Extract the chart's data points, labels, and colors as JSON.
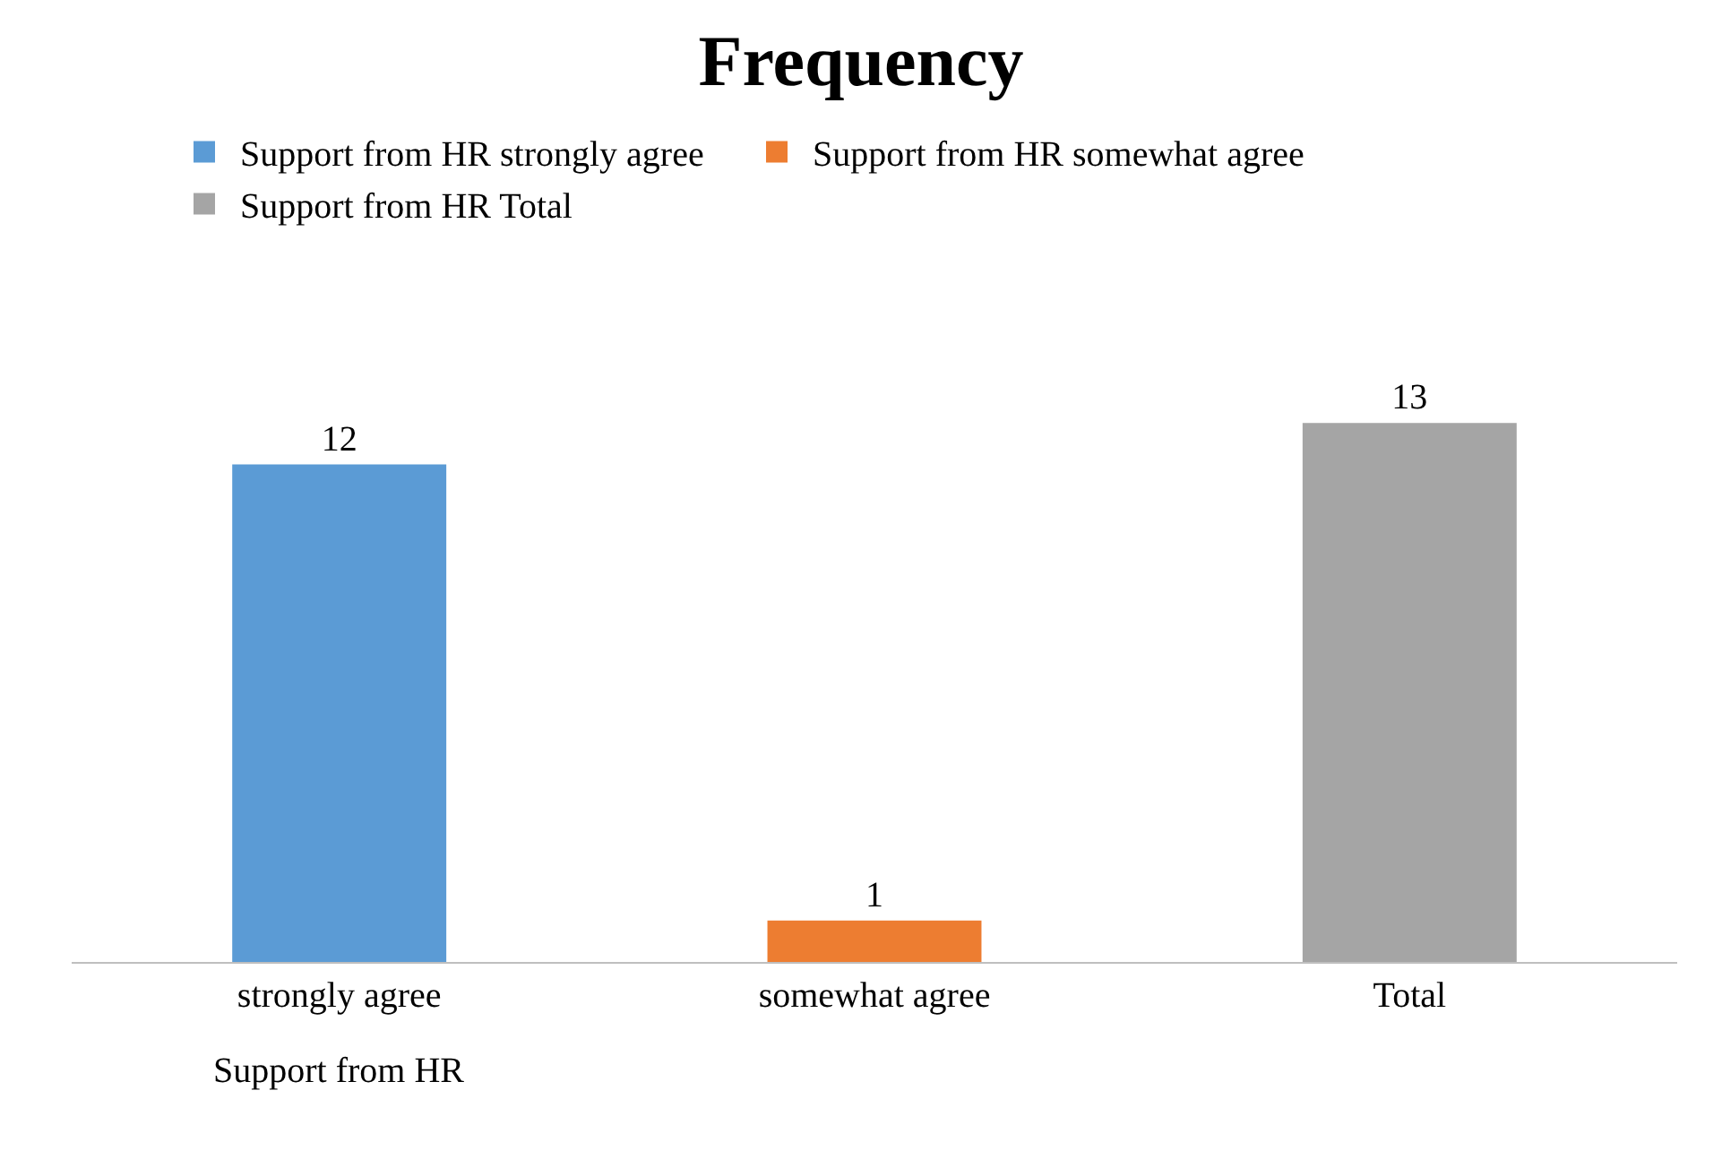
{
  "chart_data": {
    "type": "bar",
    "title": "Frequency",
    "categories": [
      "strongly agree",
      "somewhat agree",
      "Total"
    ],
    "series": [
      {
        "name": "Support from HR strongly agree",
        "color": "#5b9bd5",
        "values": [
          12,
          null,
          null
        ]
      },
      {
        "name": "Support from HR somewhat agree",
        "color": "#ed7d31",
        "values": [
          null,
          1,
          null
        ]
      },
      {
        "name": "Support from HR Total",
        "color": "#a5a5a5",
        "values": [
          null,
          null,
          13
        ]
      }
    ],
    "annotations": [
      "Support from HR"
    ],
    "data_labels": true,
    "legend": "top"
  }
}
